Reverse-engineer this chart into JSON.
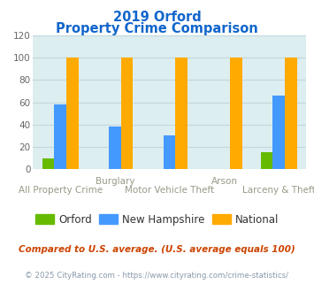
{
  "title_line1": "2019 Orford",
  "title_line2": "Property Crime Comparison",
  "x_labels_top": [
    "",
    "Burglary",
    "",
    "Arson",
    ""
  ],
  "x_labels_bot": [
    "All Property Crime",
    "",
    "Motor Vehicle Theft",
    "",
    "Larceny & Theft"
  ],
  "series": {
    "Orford": [
      10,
      0,
      0,
      0,
      15
    ],
    "New Hampshire": [
      58,
      38,
      30,
      0,
      66
    ],
    "National": [
      100,
      100,
      100,
      100,
      100
    ]
  },
  "colors": {
    "Orford": "#66bb00",
    "New Hampshire": "#4499ff",
    "National": "#ffaa00"
  },
  "ylim": [
    0,
    120
  ],
  "yticks": [
    0,
    20,
    40,
    60,
    80,
    100,
    120
  ],
  "bar_width": 0.22,
  "grid_color": "#c0d8dc",
  "bg_color": "#ddeef0",
  "title_color": "#1166cc",
  "xlabel_color": "#999988",
  "footnote1": "Compared to U.S. average. (U.S. average equals 100)",
  "footnote2": "© 2025 CityRating.com - https://www.cityrating.com/crime-statistics/",
  "footnote1_color": "#cc4400",
  "footnote2_color": "#8899aa"
}
